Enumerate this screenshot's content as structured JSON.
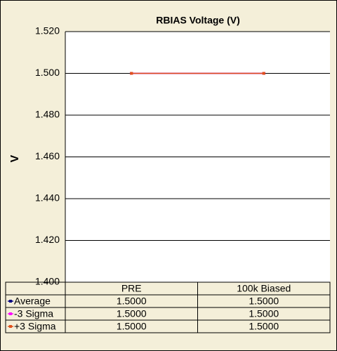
{
  "chart_data": {
    "type": "line",
    "title": "RBIAS Voltage (V)",
    "y_label": "V",
    "categories": [
      "PRE",
      "100k Biased"
    ],
    "series": [
      {
        "name": "Average",
        "color": "#000080",
        "values": [
          1.5,
          1.5
        ],
        "value_labels": [
          "1.5000",
          "1.5000"
        ]
      },
      {
        "name": "-3 Sigma",
        "color": "#ff00ff",
        "values": [
          1.5,
          1.5
        ],
        "value_labels": [
          "1.5000",
          "1.5000"
        ]
      },
      {
        "name": "+3 Sigma",
        "color": "#e0501a",
        "values": [
          1.5,
          1.5
        ],
        "value_labels": [
          "1.5000",
          "1.5000"
        ]
      }
    ],
    "ylim": [
      1.4,
      1.52
    ],
    "yticks": [
      {
        "value": 1.4,
        "label": "1.400"
      },
      {
        "value": 1.42,
        "label": "1.420"
      },
      {
        "value": 1.44,
        "label": "1.440"
      },
      {
        "value": 1.46,
        "label": "1.460"
      },
      {
        "value": 1.48,
        "label": "1.480"
      },
      {
        "value": 1.5,
        "label": "1.500"
      },
      {
        "value": 1.52,
        "label": "1.520"
      }
    ],
    "grid": true
  }
}
